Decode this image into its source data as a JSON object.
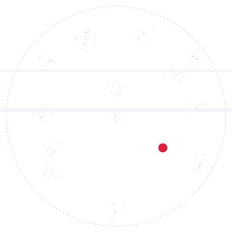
{
  "colors": {
    "background": "#ffffff",
    "outline": "#d9dbe6",
    "band": "#eef0f6",
    "speckle": "#c8ccdc",
    "marker": "#e0203f"
  },
  "icons": {
    "marker": "red-dot-marker"
  }
}
